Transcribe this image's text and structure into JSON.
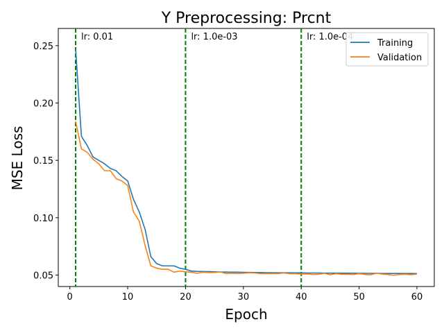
{
  "chart_data": {
    "type": "line",
    "title": "Y Preprocessing: Prcnt",
    "xlabel": "Epoch",
    "ylabel": "MSE Loss",
    "xlim": [
      -2,
      63
    ],
    "ylim": [
      0.04,
      0.265
    ],
    "xticks": [
      0,
      10,
      20,
      30,
      40,
      50,
      60
    ],
    "yticks": [
      0.05,
      0.1,
      0.15,
      0.2,
      0.25
    ],
    "ytick_labels": [
      "0.05",
      "0.10",
      "0.15",
      "0.20",
      "0.25"
    ],
    "grid": false,
    "legend_position": "top-right",
    "vlines": [
      {
        "x": 1,
        "label": "lr: 0.01",
        "color": "#008000",
        "style": "dashed"
      },
      {
        "x": 20,
        "label": "lr: 1.0e-03",
        "color": "#008000",
        "style": "dashed"
      },
      {
        "x": 40,
        "label": "lr: 1.0e-04",
        "color": "#008000",
        "style": "dashed"
      }
    ],
    "x": [
      1,
      2,
      3,
      4,
      5,
      6,
      7,
      8,
      9,
      10,
      11,
      12,
      13,
      14,
      15,
      16,
      17,
      18,
      19,
      20,
      21,
      22,
      23,
      24,
      25,
      26,
      27,
      28,
      29,
      30,
      31,
      32,
      33,
      34,
      35,
      36,
      37,
      38,
      39,
      40,
      41,
      42,
      43,
      44,
      45,
      46,
      47,
      48,
      49,
      50,
      51,
      52,
      53,
      54,
      55,
      56,
      57,
      58,
      59,
      60
    ],
    "series": [
      {
        "name": "Training",
        "color": "#1f77b4",
        "values": [
          0.247,
          0.171,
          0.163,
          0.153,
          0.15,
          0.147,
          0.143,
          0.141,
          0.136,
          0.132,
          0.116,
          0.105,
          0.09,
          0.066,
          0.06,
          0.058,
          0.058,
          0.058,
          0.056,
          0.055,
          0.0535,
          0.0532,
          0.0531,
          0.053,
          0.0528,
          0.0527,
          0.0526,
          0.0525,
          0.0525,
          0.0524,
          0.0523,
          0.0522,
          0.0522,
          0.0521,
          0.0521,
          0.052,
          0.052,
          0.052,
          0.0519,
          0.0519,
          0.0518,
          0.0518,
          0.0518,
          0.0517,
          0.0517,
          0.0517,
          0.0516,
          0.0516,
          0.0516,
          0.0515,
          0.0515,
          0.0515,
          0.0515,
          0.0514,
          0.0514,
          0.0514,
          0.0514,
          0.0514,
          0.0514,
          0.0513
        ]
      },
      {
        "name": "Validation",
        "color": "#ff7f0e",
        "values": [
          0.184,
          0.16,
          0.157,
          0.151,
          0.147,
          0.141,
          0.141,
          0.134,
          0.132,
          0.128,
          0.105,
          0.097,
          0.076,
          0.058,
          0.056,
          0.055,
          0.055,
          0.0525,
          0.0535,
          0.0528,
          0.0525,
          0.0515,
          0.0525,
          0.0522,
          0.0522,
          0.0528,
          0.0512,
          0.0515,
          0.0513,
          0.0516,
          0.052,
          0.0518,
          0.0512,
          0.0512,
          0.0514,
          0.0513,
          0.0518,
          0.0512,
          0.0512,
          0.0508,
          0.051,
          0.0505,
          0.0507,
          0.0515,
          0.0503,
          0.0512,
          0.0507,
          0.0507,
          0.0505,
          0.0512,
          0.0505,
          0.0502,
          0.0515,
          0.0508,
          0.0505,
          0.0498,
          0.0505,
          0.0507,
          0.0503,
          0.0508
        ]
      }
    ]
  }
}
